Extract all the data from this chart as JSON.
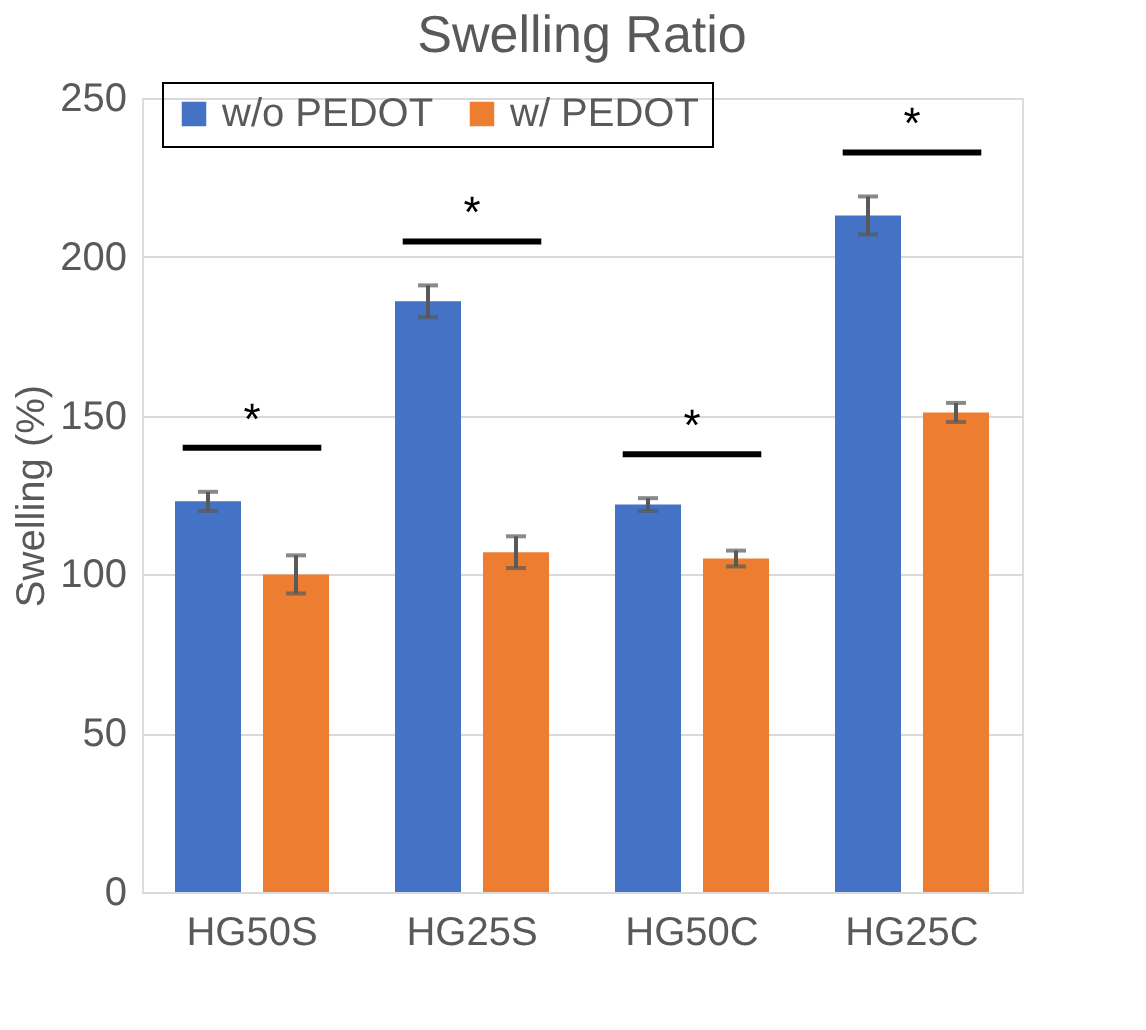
{
  "chart_data": {
    "type": "bar",
    "title": "Swelling Ratio",
    "ylabel": "Swelling (%)",
    "categories": [
      "HG50S",
      "HG25S",
      "HG50C",
      "HG25C"
    ],
    "series": [
      {
        "name": "w/o PEDOT",
        "color": "#4472c4",
        "values": [
          123,
          186,
          122,
          213
        ],
        "errors": [
          3,
          5,
          2,
          6
        ]
      },
      {
        "name": "w/ PEDOT",
        "color": "#ed7d31",
        "values": [
          100,
          107,
          105,
          151
        ],
        "errors": [
          6,
          5,
          2.5,
          3
        ]
      }
    ],
    "ylim": [
      0,
      250
    ],
    "yticks": [
      0,
      50,
      100,
      150,
      200,
      250
    ],
    "grid": "y",
    "legend": "top left",
    "annotations": [
      "*",
      "*",
      "*",
      "*"
    ]
  }
}
